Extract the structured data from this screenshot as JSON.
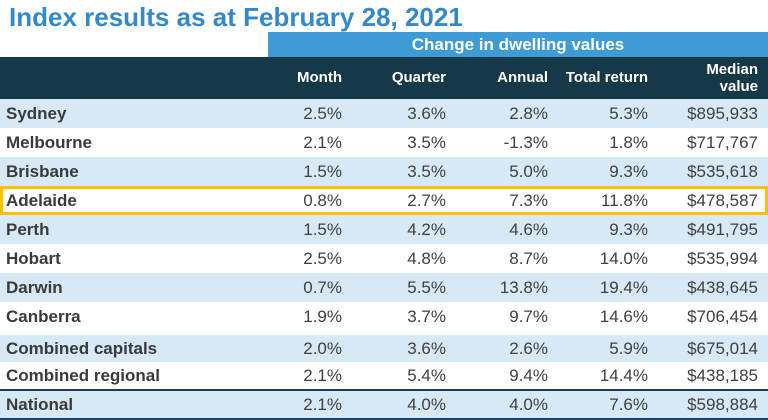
{
  "title": "Index results as at February 28, 2021",
  "banner": "Change in dwelling values",
  "columns": {
    "month": "Month",
    "quarter": "Quarter",
    "annual": "Annual",
    "total_return": "Total return",
    "median": "Median\nvalue"
  },
  "table": {
    "rows": [
      {
        "name": "Sydney",
        "month": "2.5%",
        "quarter": "3.6%",
        "annual": "2.8%",
        "total_return": "5.3%",
        "median": "$895,933"
      },
      {
        "name": "Melbourne",
        "month": "2.1%",
        "quarter": "3.5%",
        "annual": "-1.3%",
        "total_return": "1.8%",
        "median": "$717,767"
      },
      {
        "name": "Brisbane",
        "month": "1.5%",
        "quarter": "3.5%",
        "annual": "5.0%",
        "total_return": "9.3%",
        "median": "$535,618"
      },
      {
        "name": "Adelaide",
        "month": "0.8%",
        "quarter": "2.7%",
        "annual": "7.3%",
        "total_return": "11.8%",
        "median": "$478,587"
      },
      {
        "name": "Perth",
        "month": "1.5%",
        "quarter": "4.2%",
        "annual": "4.6%",
        "total_return": "9.3%",
        "median": "$491,795"
      },
      {
        "name": "Hobart",
        "month": "2.5%",
        "quarter": "4.8%",
        "annual": "8.7%",
        "total_return": "14.0%",
        "median": "$535,994"
      },
      {
        "name": "Darwin",
        "month": "0.7%",
        "quarter": "5.5%",
        "annual": "13.8%",
        "total_return": "19.4%",
        "median": "$438,645"
      },
      {
        "name": "Canberra",
        "month": "1.9%",
        "quarter": "3.7%",
        "annual": "9.7%",
        "total_return": "14.6%",
        "median": "$706,454"
      },
      {
        "name": "Combined capitals",
        "month": "2.0%",
        "quarter": "3.6%",
        "annual": "2.6%",
        "total_return": "5.9%",
        "median": "$675,014"
      },
      {
        "name": "Combined regional",
        "month": "2.1%",
        "quarter": "5.4%",
        "annual": "9.4%",
        "total_return": "14.4%",
        "median": "$438,185"
      },
      {
        "name": "National",
        "month": "2.1%",
        "quarter": "4.0%",
        "annual": "4.0%",
        "total_return": "7.6%",
        "median": "$598,884"
      }
    ],
    "highlighted_row": "Adelaide"
  },
  "colors": {
    "title_blue": "#3289cc",
    "banner_blue": "#3e9bd5",
    "header_dark": "#16394a",
    "stripe_blue": "#d7e8f6",
    "highlight_yellow": "#ffc000",
    "national_border": "#1f3864",
    "text_dark": "#404040"
  },
  "chart_data": {
    "type": "table",
    "title": "Index results as at February 28, 2021",
    "group_header": "Change in dwelling values",
    "columns": [
      "",
      "Month",
      "Quarter",
      "Annual",
      "Total return",
      "Median value"
    ],
    "rows": [
      [
        "Sydney",
        "2.5%",
        "3.6%",
        "2.8%",
        "5.3%",
        "$895,933"
      ],
      [
        "Melbourne",
        "2.1%",
        "3.5%",
        "-1.3%",
        "1.8%",
        "$717,767"
      ],
      [
        "Brisbane",
        "1.5%",
        "3.5%",
        "5.0%",
        "9.3%",
        "$535,618"
      ],
      [
        "Adelaide",
        "0.8%",
        "2.7%",
        "7.3%",
        "11.8%",
        "$478,587"
      ],
      [
        "Perth",
        "1.5%",
        "4.2%",
        "4.6%",
        "9.3%",
        "$491,795"
      ],
      [
        "Hobart",
        "2.5%",
        "4.8%",
        "8.7%",
        "14.0%",
        "$535,994"
      ],
      [
        "Darwin",
        "0.7%",
        "5.5%",
        "13.8%",
        "19.4%",
        "$438,645"
      ],
      [
        "Canberra",
        "1.9%",
        "3.7%",
        "9.7%",
        "14.6%",
        "$706,454"
      ],
      [
        "Combined capitals",
        "2.0%",
        "3.6%",
        "2.6%",
        "5.9%",
        "$675,014"
      ],
      [
        "Combined regional",
        "2.1%",
        "5.4%",
        "9.4%",
        "14.4%",
        "$438,185"
      ],
      [
        "National",
        "2.1%",
        "4.0%",
        "4.0%",
        "7.6%",
        "$598,884"
      ]
    ]
  }
}
